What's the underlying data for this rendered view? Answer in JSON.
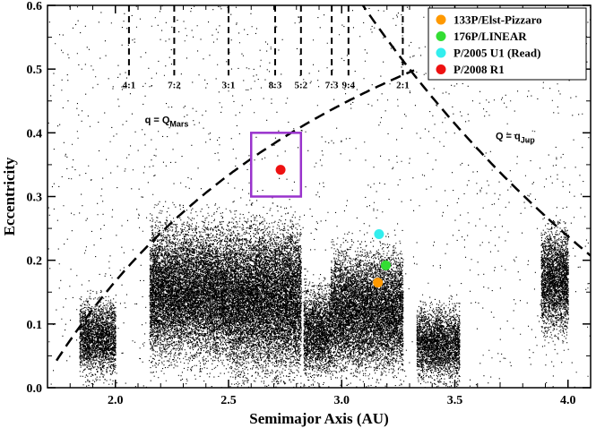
{
  "chart_data": {
    "type": "scatter",
    "title": "",
    "xlabel": "Semimajor Axis (AU)",
    "ylabel": "Eccentricity",
    "xlim": [
      1.7,
      4.1
    ],
    "ylim": [
      0.0,
      0.6
    ],
    "xticks": [
      2.0,
      2.5,
      3.0,
      3.5,
      4.0
    ],
    "xtick_labels": [
      "2.0",
      "2.5",
      "3.0",
      "3.5",
      "4.0"
    ],
    "yticks": [
      0.0,
      0.1,
      0.2,
      0.3,
      0.4,
      0.5,
      0.6
    ],
    "ytick_labels": [
      "0.0",
      "0.1",
      "0.2",
      "0.3",
      "0.4",
      "0.5",
      "0.6"
    ],
    "grid": false,
    "legend_position": "top-right",
    "background_population": {
      "description_color": "#000000",
      "clusters": [
        {
          "a_range": [
            1.84,
            2.0
          ],
          "e_center": 0.08,
          "e_spread": 0.05
        },
        {
          "a_range": [
            2.15,
            2.5
          ],
          "e_center": 0.15,
          "e_spread": 0.09
        },
        {
          "a_range": [
            2.5,
            2.82
          ],
          "e_center": 0.14,
          "e_spread": 0.1
        },
        {
          "a_range": [
            2.83,
            2.95
          ],
          "e_center": 0.09,
          "e_spread": 0.06
        },
        {
          "a_range": [
            2.95,
            3.27
          ],
          "e_center": 0.12,
          "e_spread": 0.08
        },
        {
          "a_range": [
            3.33,
            3.52
          ],
          "e_center": 0.07,
          "e_spread": 0.05
        },
        {
          "a_range": [
            3.88,
            4.0
          ],
          "e_center": 0.17,
          "e_spread": 0.07
        }
      ]
    },
    "resonances": [
      {
        "label": "4:1",
        "a": 2.06
      },
      {
        "label": "7:2",
        "a": 2.26
      },
      {
        "label": "3:1",
        "a": 2.5
      },
      {
        "label": "8:3",
        "a": 2.706
      },
      {
        "label": "5:2",
        "a": 2.82
      },
      {
        "label": "7:3",
        "a": 2.956
      },
      {
        "label": "9:4",
        "a": 3.03
      },
      {
        "label": "2:1",
        "a": 3.27
      }
    ],
    "resonance_line_top_e": 0.6,
    "resonance_line_bottom_e": 0.49,
    "curves": [
      {
        "name": "q = Q_Mars",
        "label_main": "q = Q",
        "label_sub": "Mars",
        "q": 1.666,
        "a_range": [
          1.74,
          3.32
        ],
        "label_a": 2.13,
        "label_e": 0.415
      },
      {
        "name": "Q = q_Jup",
        "label_main": "Q = q",
        "label_sub": "Jup",
        "Q": 4.95,
        "a_range": [
          3.08,
          4.1
        ],
        "label_a": 3.68,
        "label_e": 0.39
      }
    ],
    "highlight_box": {
      "a_range": [
        2.6,
        2.82
      ],
      "e_range": [
        0.3,
        0.4
      ],
      "color": "#9933cc"
    },
    "series": [
      {
        "name": "133P/Elst-Pizzaro",
        "color": "#ff9900",
        "x": [
          3.16
        ],
        "y": [
          0.165
        ]
      },
      {
        "name": "176P/LINEAR",
        "color": "#33dd33",
        "x": [
          3.195
        ],
        "y": [
          0.192
        ]
      },
      {
        "name": "P/2005 U1 (Read)",
        "color": "#33eeee",
        "x": [
          3.165
        ],
        "y": [
          0.241
        ]
      },
      {
        "name": "P/2008 R1",
        "color": "#ee1111",
        "x": [
          2.73
        ],
        "y": [
          0.342
        ]
      }
    ]
  }
}
